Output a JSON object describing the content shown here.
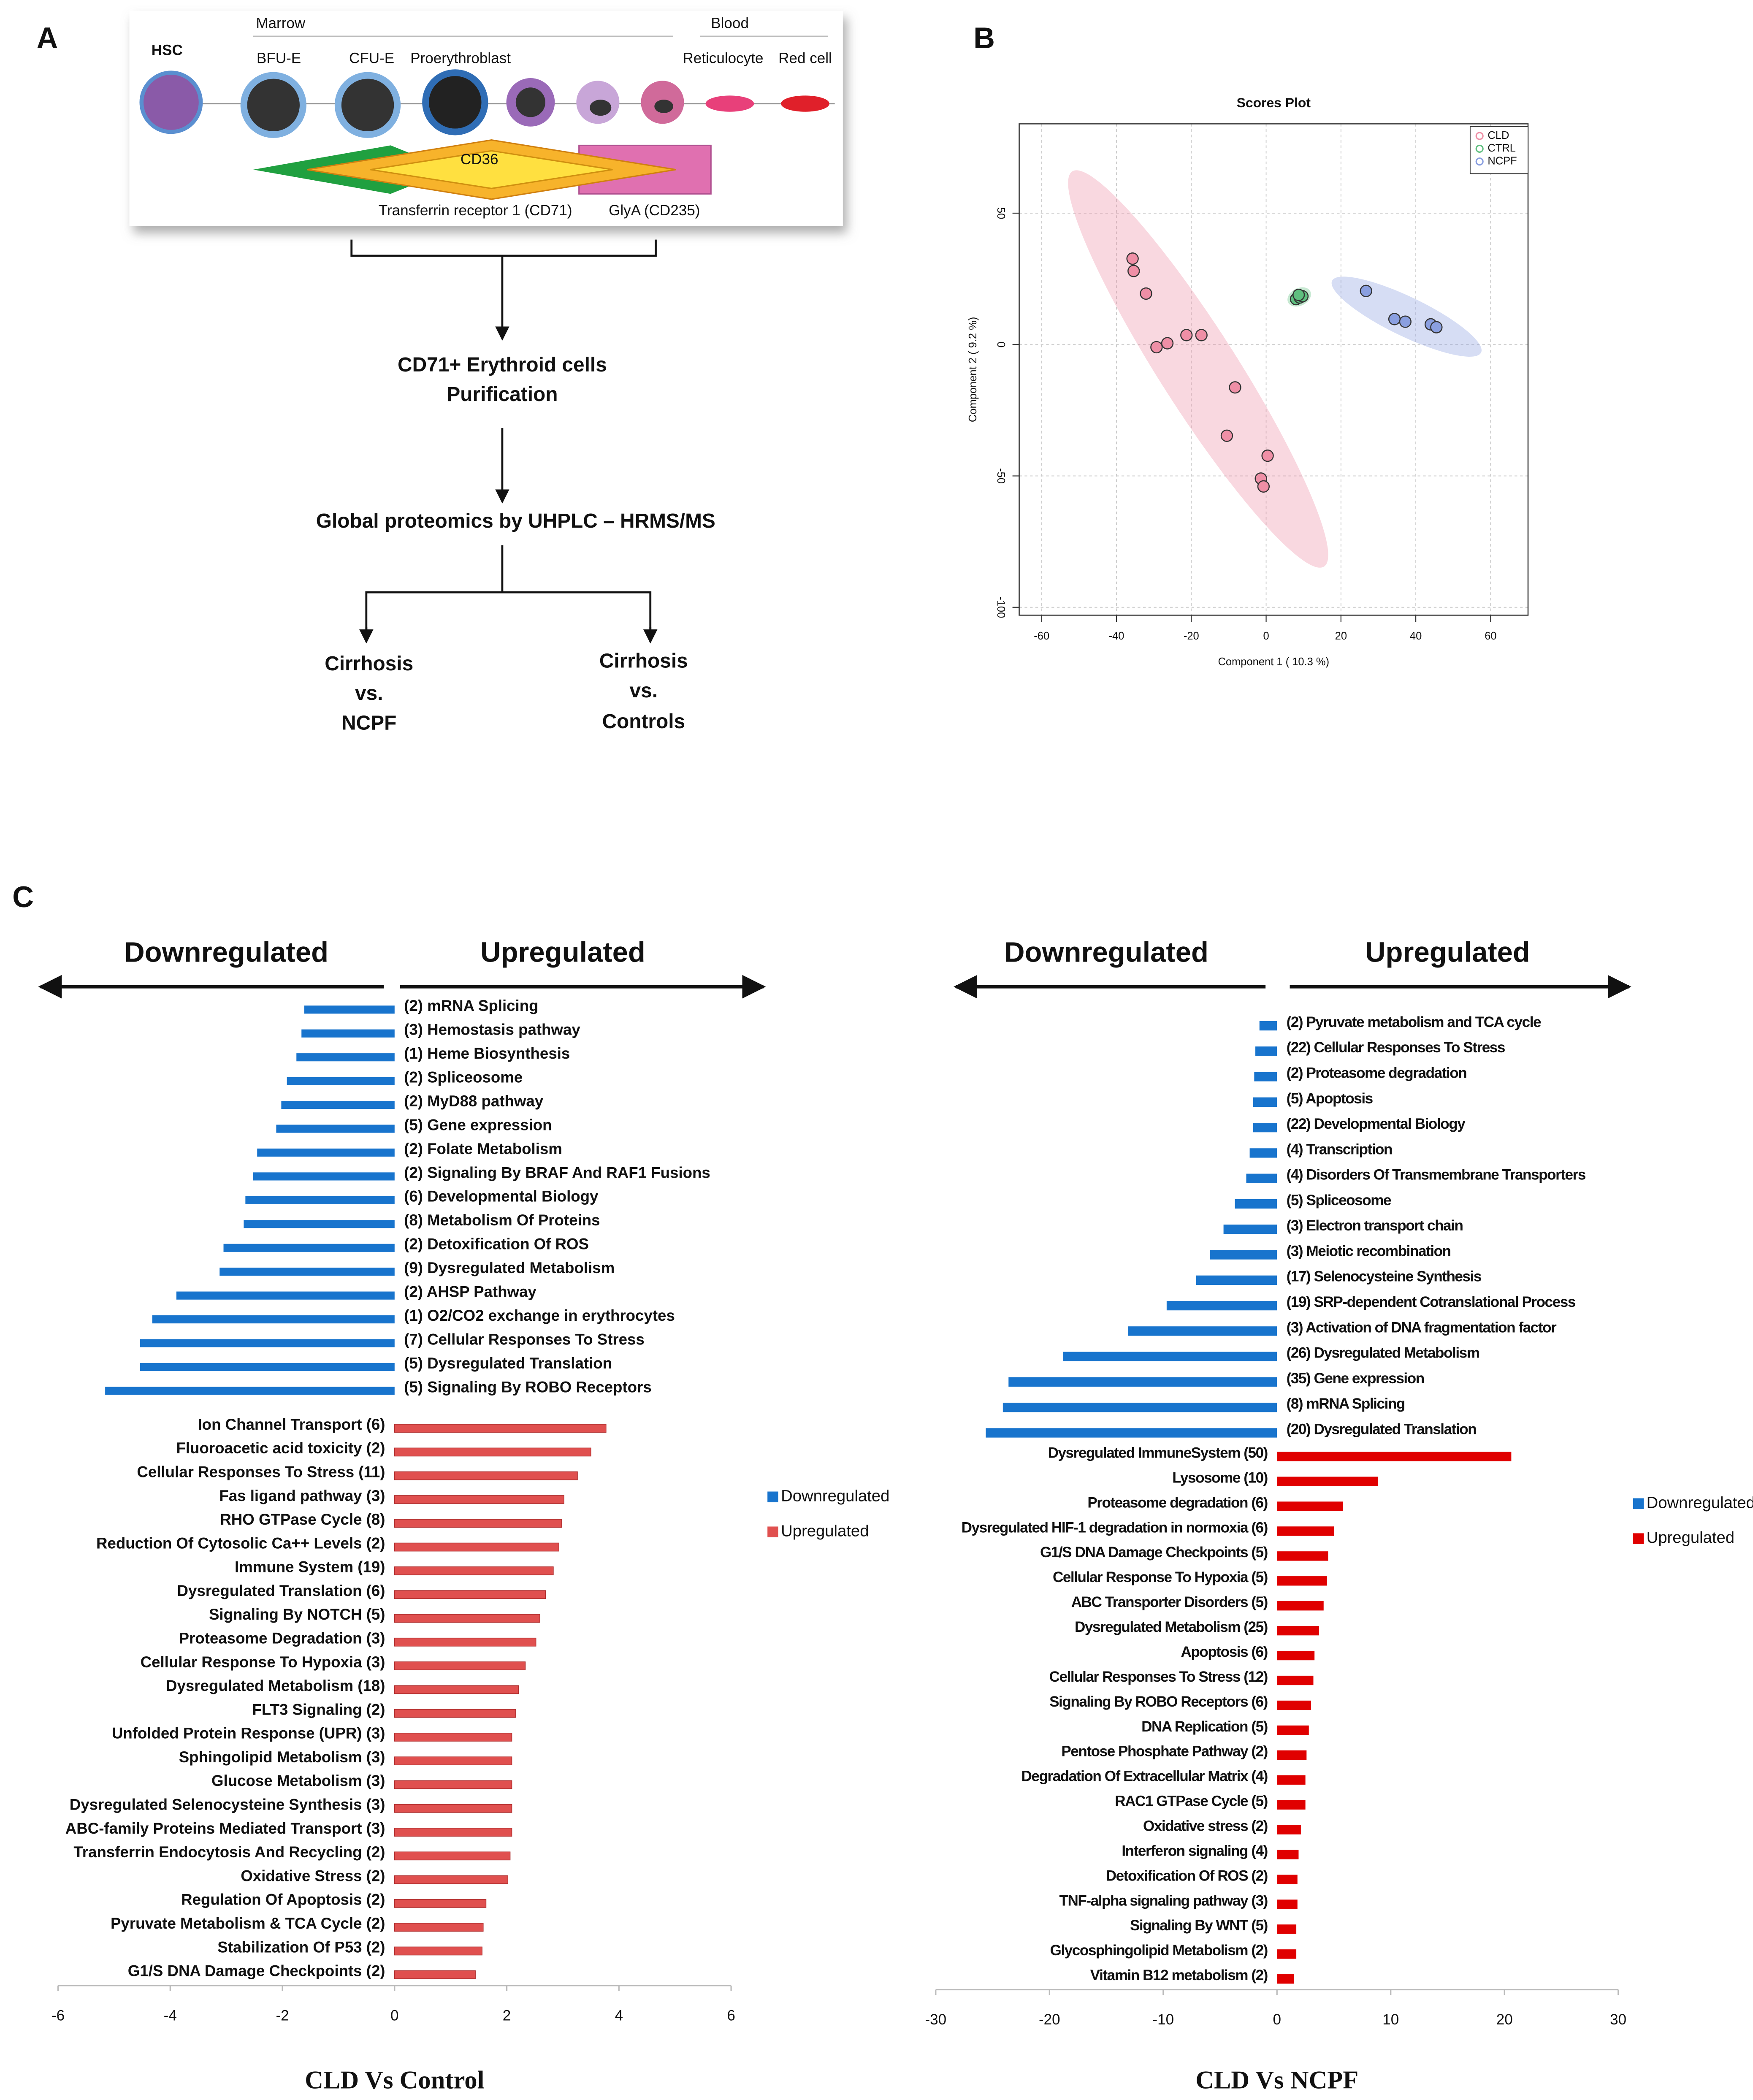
{
  "figure": {
    "panel_labels": [
      "A",
      "B",
      "C"
    ]
  },
  "panel_a": {
    "stem_cell": "HSC",
    "stage_groups": [
      "Marrow",
      "Blood"
    ],
    "stages": [
      "BFU-E",
      "CFU-E",
      "Proerythroblast",
      "Reticulocyte",
      "Red cell"
    ],
    "markers": [
      "CD36",
      "Transferrin receptor 1 (CD71)",
      "GlyA (CD235)"
    ],
    "steps": [
      [
        "CD71+ Erythroid cells",
        "Purification"
      ],
      [
        "Global proteomics by UHPLC – HRMS/MS"
      ]
    ],
    "comparisons": [
      [
        "Cirrhosis",
        "vs.",
        "NCPF"
      ],
      [
        "Cirrhosis",
        "vs.",
        "Controls"
      ]
    ]
  },
  "chart_data": [
    {
      "type": "scatter",
      "title": "Scores Plot",
      "x_label": "Component 1 ( 10.3 %)",
      "y_label": "Component 2 ( 9.2 %)",
      "xlim": [
        -66,
        70
      ],
      "ylim": [
        -103,
        84
      ],
      "xticks": [
        -60,
        -40,
        -20,
        0,
        20,
        40,
        60
      ],
      "yticks": [
        -100,
        -50,
        0,
        50
      ],
      "grid": true,
      "legend": "top-right",
      "confidence_ellipse": true,
      "series": [
        {
          "name": "CLD",
          "color": "#ef8fa6",
          "x": [
            -35.7,
            -35.4,
            -32.1,
            -29.3,
            -26.4,
            -21.3,
            -17.3,
            -8.3,
            -10.5,
            0.4,
            -1.4,
            -0.7
          ],
          "values": [
            32.7,
            28,
            19.4,
            -1,
            0.5,
            3.6,
            3.6,
            -16.3,
            -34.7,
            -42.3,
            -51,
            -54
          ]
        },
        {
          "name": "CTRL",
          "color": "#5fbf7f",
          "x": [
            8,
            9,
            9.7,
            8.7
          ],
          "values": [
            17.3,
            17.9,
            18.4,
            18.9
          ]
        },
        {
          "name": "NCPF",
          "color": "#8a9fe0",
          "x": [
            26.7,
            34.3,
            37.2,
            44,
            45.5
          ],
          "values": [
            20.4,
            9.7,
            8.7,
            7.7,
            6.6
          ]
        }
      ]
    },
    {
      "type": "bar",
      "orientation": "horizontal",
      "x_label": "CLD Vs Control",
      "direction_labels": [
        "Downregulated",
        "Upregulated"
      ],
      "xlim": [
        -6,
        6
      ],
      "xticks": [
        -6,
        -4,
        -2,
        0,
        2,
        4,
        6
      ],
      "legend": "right",
      "series": [
        {
          "name": "Downregulated",
          "color": "#1874cd",
          "categories": [
            "(2) mRNA Splicing",
            "(3) Hemostasis pathway",
            "(1) Heme Biosynthesis",
            "(2) Spliceosome",
            "(2) MyD88 pathway",
            "(5) Gene expression",
            "(2) Folate Metabolism",
            "(2) Signaling By BRAF And RAF1 Fusions",
            "(6) Developmental Biology",
            "(8) Metabolism Of Proteins",
            "(2) Detoxification Of ROS",
            "(9) Dysregulated Metabolism",
            "(2) AHSP Pathway",
            "(1) O2/CO2 exchange in erythrocytes",
            "(7) Cellular Responses To Stress",
            "(5) Dysregulated Translation",
            "(5) Signaling By ROBO Receptors"
          ],
          "values": [
            -1.61,
            -1.66,
            -1.75,
            -1.92,
            -2.02,
            -2.11,
            -2.45,
            -2.52,
            -2.66,
            -2.69,
            -3.05,
            -3.12,
            -3.89,
            -4.32,
            -4.54,
            -4.54,
            -5.16
          ]
        },
        {
          "name": "Upregulated",
          "color": "#e0504f",
          "categories": [
            "Ion Channel Transport (6)",
            "Fluoroacetic acid toxicity (2)",
            "Cellular Responses To Stress (11)",
            "Fas ligand pathway (3)",
            "RHO GTPase Cycle (8)",
            "Reduction Of Cytosolic Ca++ Levels (2)",
            "Immune System (19)",
            "Dysregulated Translation (6)",
            "Signaling By NOTCH (5)",
            "Proteasome Degradation (3)",
            "Cellular Response To Hypoxia (3)",
            "Dysregulated Metabolism (18)",
            "FLT3 Signaling (2)",
            "Unfolded Protein Response (UPR) (3)",
            "Sphingolipid Metabolism (3)",
            "Glucose Metabolism (3)",
            "Dysregulated Selenocysteine Synthesis (3)",
            "ABC-family Proteins Mediated Transport (3)",
            "Transferrin Endocytosis And Recycling (2)",
            "Oxidative Stress (2)",
            "Regulation Of Apoptosis (2)",
            "Pyruvate Metabolism & TCA Cycle (2)",
            "Stabilization Of P53 (2)",
            "G1/S DNA Damage Checkpoints (2)"
          ],
          "values": [
            3.77,
            3.5,
            3.26,
            3.02,
            2.98,
            2.93,
            2.83,
            2.69,
            2.59,
            2.52,
            2.33,
            2.21,
            2.16,
            2.09,
            2.09,
            2.09,
            2.09,
            2.09,
            2.06,
            2.02,
            1.63,
            1.58,
            1.56,
            1.44
          ]
        }
      ]
    },
    {
      "type": "bar",
      "orientation": "horizontal",
      "x_label": "CLD Vs NCPF",
      "direction_labels": [
        "Downregulated",
        "Upregulated"
      ],
      "xlim": [
        -30,
        30
      ],
      "xticks": [
        -30,
        -20,
        -10,
        0,
        10,
        20,
        30
      ],
      "legend": "right",
      "series": [
        {
          "name": "Downregulated",
          "color": "#1874cd",
          "categories": [
            "(2) Pyruvate metabolism and TCA cycle",
            "(22) Cellular Responses To Stress",
            "(2) Proteasome degradation",
            "(5) Apoptosis",
            "(22) Developmental Biology",
            "(4) Transcription",
            "(4) Disorders Of Transmembrane Transporters",
            "(5) Spliceosome",
            "(3) Electron transport chain",
            "(3) Meiotic recombination",
            "(17) Selenocysteine Synthesis",
            "(19) SRP-dependent Cotranslational Process",
            "(3) Activation of DNA fragmentation factor",
            "(26) Dysregulated Metabolism",
            "(35) Gene expression",
            "(8) mRNA Splicing",
            "(20) Dysregulated Translation"
          ],
          "values": [
            -1.54,
            -1.9,
            -2.0,
            -2.1,
            -2.1,
            -2.4,
            -2.7,
            -3.7,
            -4.7,
            -5.9,
            -7.1,
            -9.7,
            -13.1,
            -18.8,
            -23.6,
            -24.1,
            -25.6
          ]
        },
        {
          "name": "Upregulated",
          "color": "#e00000",
          "categories": [
            "Dysregulated ImmuneSystem (50)",
            "Lysosome (10)",
            "Proteasome degradation (6)",
            "Dysregulated HIF-1 degradation in normoxia (6)",
            "G1/S DNA Damage Checkpoints (5)",
            "Cellular Response To Hypoxia (5)",
            "ABC Transporter Disorders (5)",
            "Dysregulated Metabolism (25)",
            "Apoptosis (6)",
            "Cellular Responses To Stress (12)",
            "Signaling By ROBO Receptors (6)",
            "DNA Replication (5)",
            "Pentose Phosphate Pathway (2)",
            "Degradation Of Extracellular Matrix (4)",
            "RAC1 GTPase Cycle (5)",
            "Oxidative stress (2)",
            "Interferon signaling (4)",
            "Detoxification Of ROS (2)",
            "TNF-alpha signaling pathway (3)",
            "Signaling By WNT (5)",
            "Glycosphingolipid Metabolism (2)",
            "Vitamin B12 metabolism (2)"
          ],
          "values": [
            20.6,
            8.9,
            5.8,
            5.0,
            4.5,
            4.4,
            4.1,
            3.7,
            3.3,
            3.2,
            3.0,
            2.8,
            2.6,
            2.5,
            2.5,
            2.1,
            1.9,
            1.8,
            1.8,
            1.7,
            1.7,
            1.5
          ]
        }
      ]
    }
  ]
}
